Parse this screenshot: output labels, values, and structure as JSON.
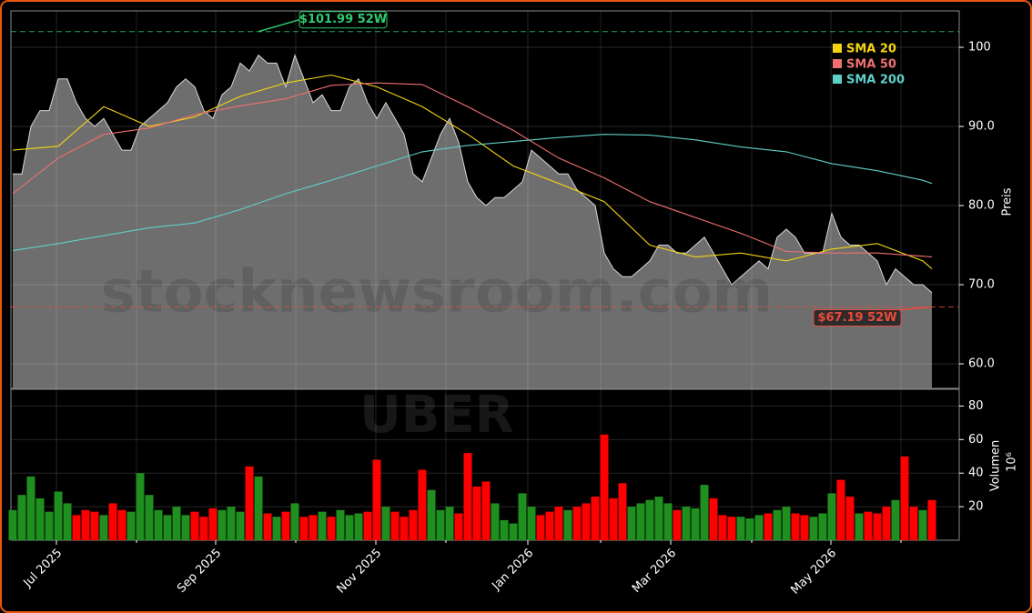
{
  "chart_data": {
    "type": "stock",
    "watermark": "stocknewsroom.com",
    "ticker_watermark": "UBER",
    "xlim": [
      -0.2,
      104
    ],
    "xticks": [
      {
        "value": 4.8,
        "label": "Jul 2025"
      },
      {
        "value": 22.3,
        "label": "Sep 2025"
      },
      {
        "value": 39.9,
        "label": "Nov 2025"
      },
      {
        "value": 56.6,
        "label": "Jan 2026"
      },
      {
        "value": 72.3,
        "label": "Mar 2026"
      },
      {
        "value": 89.9,
        "label": "May 2026"
      }
    ],
    "xminor": [
      13.6,
      31.1,
      47.6,
      64.6,
      81.2,
      97.6
    ],
    "grid": true,
    "price": {
      "ylabel": "Preis",
      "ylim": [
        56.9,
        104.6
      ],
      "yticks": [
        {
          "value": 60,
          "label": "60.0"
        },
        {
          "value": 70,
          "label": "70.0"
        },
        {
          "value": 80,
          "label": "80.0"
        },
        {
          "value": 90,
          "label": "90.0"
        },
        {
          "value": 100,
          "label": "100"
        }
      ],
      "color": "#6e6e6e",
      "values": [
        84,
        84,
        90,
        92,
        92,
        96,
        96,
        93,
        91,
        90,
        91,
        89,
        87,
        87,
        90,
        91,
        92,
        93,
        95,
        96,
        95,
        92,
        91,
        94,
        95,
        98,
        97,
        99,
        98,
        98,
        95,
        99,
        96,
        93,
        94,
        92,
        92,
        95,
        96,
        93,
        91,
        93,
        91,
        89,
        84,
        83,
        86,
        89,
        91,
        88,
        83,
        81,
        80,
        81,
        81,
        82,
        83,
        87,
        86,
        85,
        84,
        84,
        82,
        81,
        80,
        74,
        72,
        71,
        71,
        72,
        73,
        75,
        75,
        74,
        74,
        75,
        76,
        74,
        72,
        70,
        71,
        72,
        73,
        72,
        76,
        77,
        76,
        74,
        74,
        74,
        79,
        76,
        75,
        75,
        74,
        73,
        70,
        72,
        71,
        70,
        70,
        69
      ]
    },
    "sma": {
      "x": [
        0,
        5,
        10,
        15,
        20,
        25,
        30,
        35,
        40,
        45,
        50,
        55,
        60,
        65,
        70,
        75,
        80,
        85,
        90,
        95,
        100,
        101
      ],
      "series": [
        {
          "name": "SMA 20",
          "color": "#f5d40f",
          "values": [
            87,
            87.5,
            92.5,
            90,
            91.2,
            93.8,
            95.5,
            96.5,
            95,
            92.5,
            89,
            85,
            82.8,
            80.5,
            75,
            73.5,
            74,
            73,
            74.5,
            75.2,
            73,
            72
          ]
        },
        {
          "name": "SMA 50",
          "color": "#f07070",
          "values": [
            81.5,
            86,
            89,
            89.8,
            91.5,
            92.6,
            93.5,
            95.2,
            95.5,
            95.3,
            92.5,
            89.5,
            86,
            83.5,
            80.5,
            78.5,
            76.5,
            74.2,
            74,
            74,
            73.6,
            73.5
          ]
        },
        {
          "name": "SMA 200",
          "color": "#5fcfc8",
          "values": [
            74.3,
            75.2,
            76.2,
            77.2,
            77.8,
            79.5,
            81.5,
            83.2,
            85,
            86.8,
            87.6,
            88.1,
            88.6,
            89,
            88.9,
            88.3,
            87.4,
            86.8,
            85.3,
            84.4,
            83.2,
            82.8
          ]
        }
      ]
    },
    "annotations": [
      {
        "label": "$101.99 52W",
        "value": 101.99,
        "color": "#2ecc71"
      },
      {
        "label": "$67.19 52W",
        "value": 67.19,
        "color": "#e74c3c"
      }
    ],
    "volume": {
      "ylabel": "Volumen",
      "multiplier": "10⁶",
      "ylim": [
        0,
        90
      ],
      "yticks": [
        20,
        40,
        60,
        80
      ],
      "up_color": "#1f8f1f",
      "down_color": "#ff0000",
      "values": [
        18,
        27,
        38,
        25,
        17,
        29,
        22,
        15,
        18,
        17,
        15,
        22,
        18,
        17,
        40,
        27,
        18,
        15,
        20,
        15,
        17,
        14,
        19,
        18,
        20,
        17,
        44,
        38,
        16,
        14,
        17,
        22,
        14,
        15,
        17,
        14,
        18,
        15,
        16,
        17,
        48,
        20,
        17,
        14,
        18,
        42,
        30,
        18,
        20,
        16,
        52,
        32,
        35,
        22,
        12,
        10,
        28,
        20,
        15,
        17,
        20,
        18,
        20,
        22,
        26,
        63,
        25,
        34,
        20,
        22,
        24,
        26,
        22,
        18,
        20,
        19,
        33,
        25,
        15,
        14,
        14,
        13,
        15,
        16,
        18,
        20,
        16,
        15,
        14,
        16,
        28,
        36,
        26,
        16,
        17,
        16,
        20,
        24,
        50,
        20,
        18,
        24
      ]
    }
  }
}
